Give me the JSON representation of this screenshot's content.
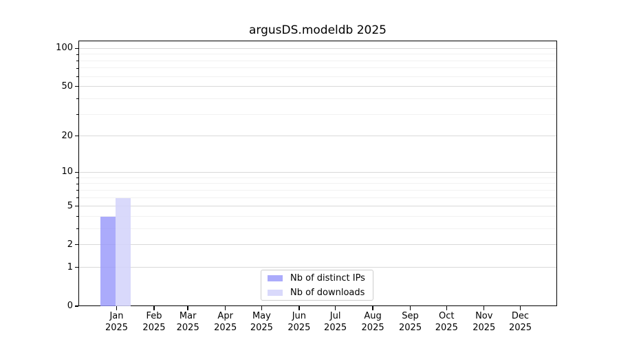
{
  "chart_data": {
    "type": "bar",
    "title": "argusDS.modeldb 2025",
    "categories": [
      {
        "month": "Jan",
        "year": "2025"
      },
      {
        "month": "Feb",
        "year": "2025"
      },
      {
        "month": "Mar",
        "year": "2025"
      },
      {
        "month": "Apr",
        "year": "2025"
      },
      {
        "month": "May",
        "year": "2025"
      },
      {
        "month": "Jun",
        "year": "2025"
      },
      {
        "month": "Jul",
        "year": "2025"
      },
      {
        "month": "Aug",
        "year": "2025"
      },
      {
        "month": "Sep",
        "year": "2025"
      },
      {
        "month": "Oct",
        "year": "2025"
      },
      {
        "month": "Nov",
        "year": "2025"
      },
      {
        "month": "Dec",
        "year": "2025"
      }
    ],
    "series": [
      {
        "name": "Nb of distinct IPs",
        "color": "#9696fa",
        "alpha": 0.8,
        "values": [
          4,
          0,
          0,
          0,
          0,
          0,
          0,
          0,
          0,
          0,
          0,
          0
        ]
      },
      {
        "name": "Nb of downloads",
        "color": "#d2d2fa",
        "alpha": 0.85,
        "values": [
          6,
          0,
          0,
          0,
          0,
          0,
          0,
          0,
          0,
          0,
          0,
          0
        ]
      }
    ],
    "xlabel": "",
    "ylabel": "",
    "yscale": "log1p",
    "ylim": [
      0,
      115
    ],
    "y_major_ticks": [
      0,
      1,
      2,
      5,
      10,
      20,
      50,
      100
    ],
    "y_minor_ticks": [
      3,
      4,
      6,
      7,
      8,
      9,
      30,
      40,
      60,
      70,
      80,
      90
    ],
    "grid": "horizontal, major and minor, axis-below-bars",
    "legend_position": "lower center",
    "colors": {
      "major_grid": "#d9d9d9",
      "minor_grid": "#f1f1f1",
      "spine": "#000000",
      "text": "#000000",
      "background": "#ffffff"
    }
  }
}
